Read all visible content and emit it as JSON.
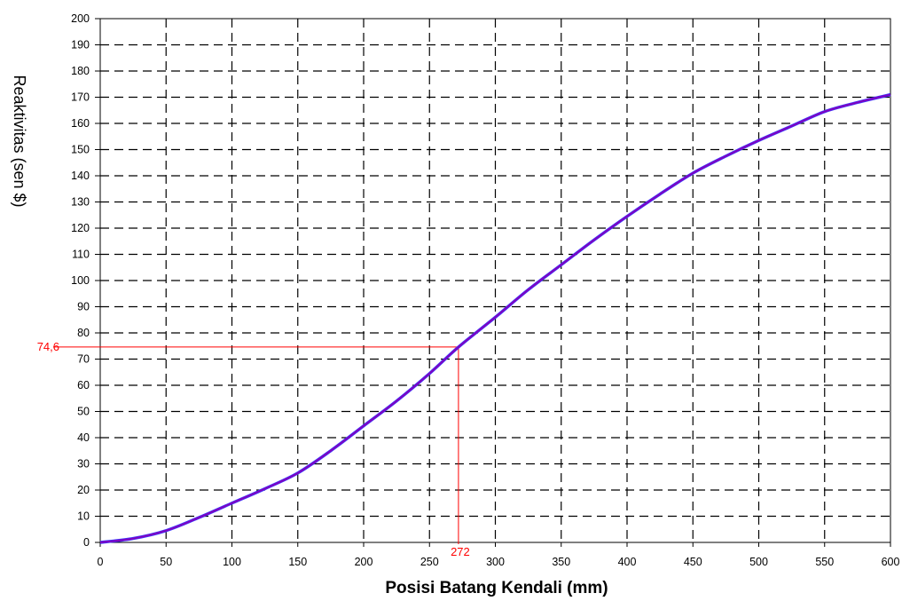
{
  "chart_data": {
    "type": "line",
    "title": "",
    "xlabel": "Posisi Batang Kendali (mm)",
    "ylabel": "Reaktivitas (sen $)",
    "xlim": [
      0,
      600
    ],
    "ylim": [
      0,
      200
    ],
    "x_ticks": [
      0,
      50,
      100,
      150,
      200,
      250,
      300,
      350,
      400,
      450,
      500,
      550,
      600
    ],
    "y_ticks": [
      0,
      10,
      20,
      30,
      40,
      50,
      60,
      70,
      80,
      90,
      100,
      110,
      120,
      130,
      140,
      150,
      160,
      170,
      180,
      190,
      200
    ],
    "grid": true,
    "series": [
      {
        "name": "",
        "color": "#8000c0",
        "x": [
          0,
          25,
          50,
          75,
          100,
          125,
          150,
          175,
          200,
          225,
          250,
          272,
          300,
          325,
          350,
          375,
          400,
          425,
          450,
          475,
          500,
          525,
          550,
          575,
          600
        ],
        "y": [
          0,
          1.5,
          4.5,
          9.5,
          15,
          20.5,
          26.5,
          35,
          44.5,
          54,
          64.5,
          74.6,
          86,
          96.5,
          106,
          115.5,
          124.5,
          133,
          141,
          147.5,
          153.5,
          159,
          164.5,
          168,
          171
        ]
      }
    ],
    "annotations": [
      {
        "color": "#ff0000",
        "x": 272,
        "y": 74.6,
        "x_text": "272",
        "y_text": "74,6"
      }
    ]
  }
}
